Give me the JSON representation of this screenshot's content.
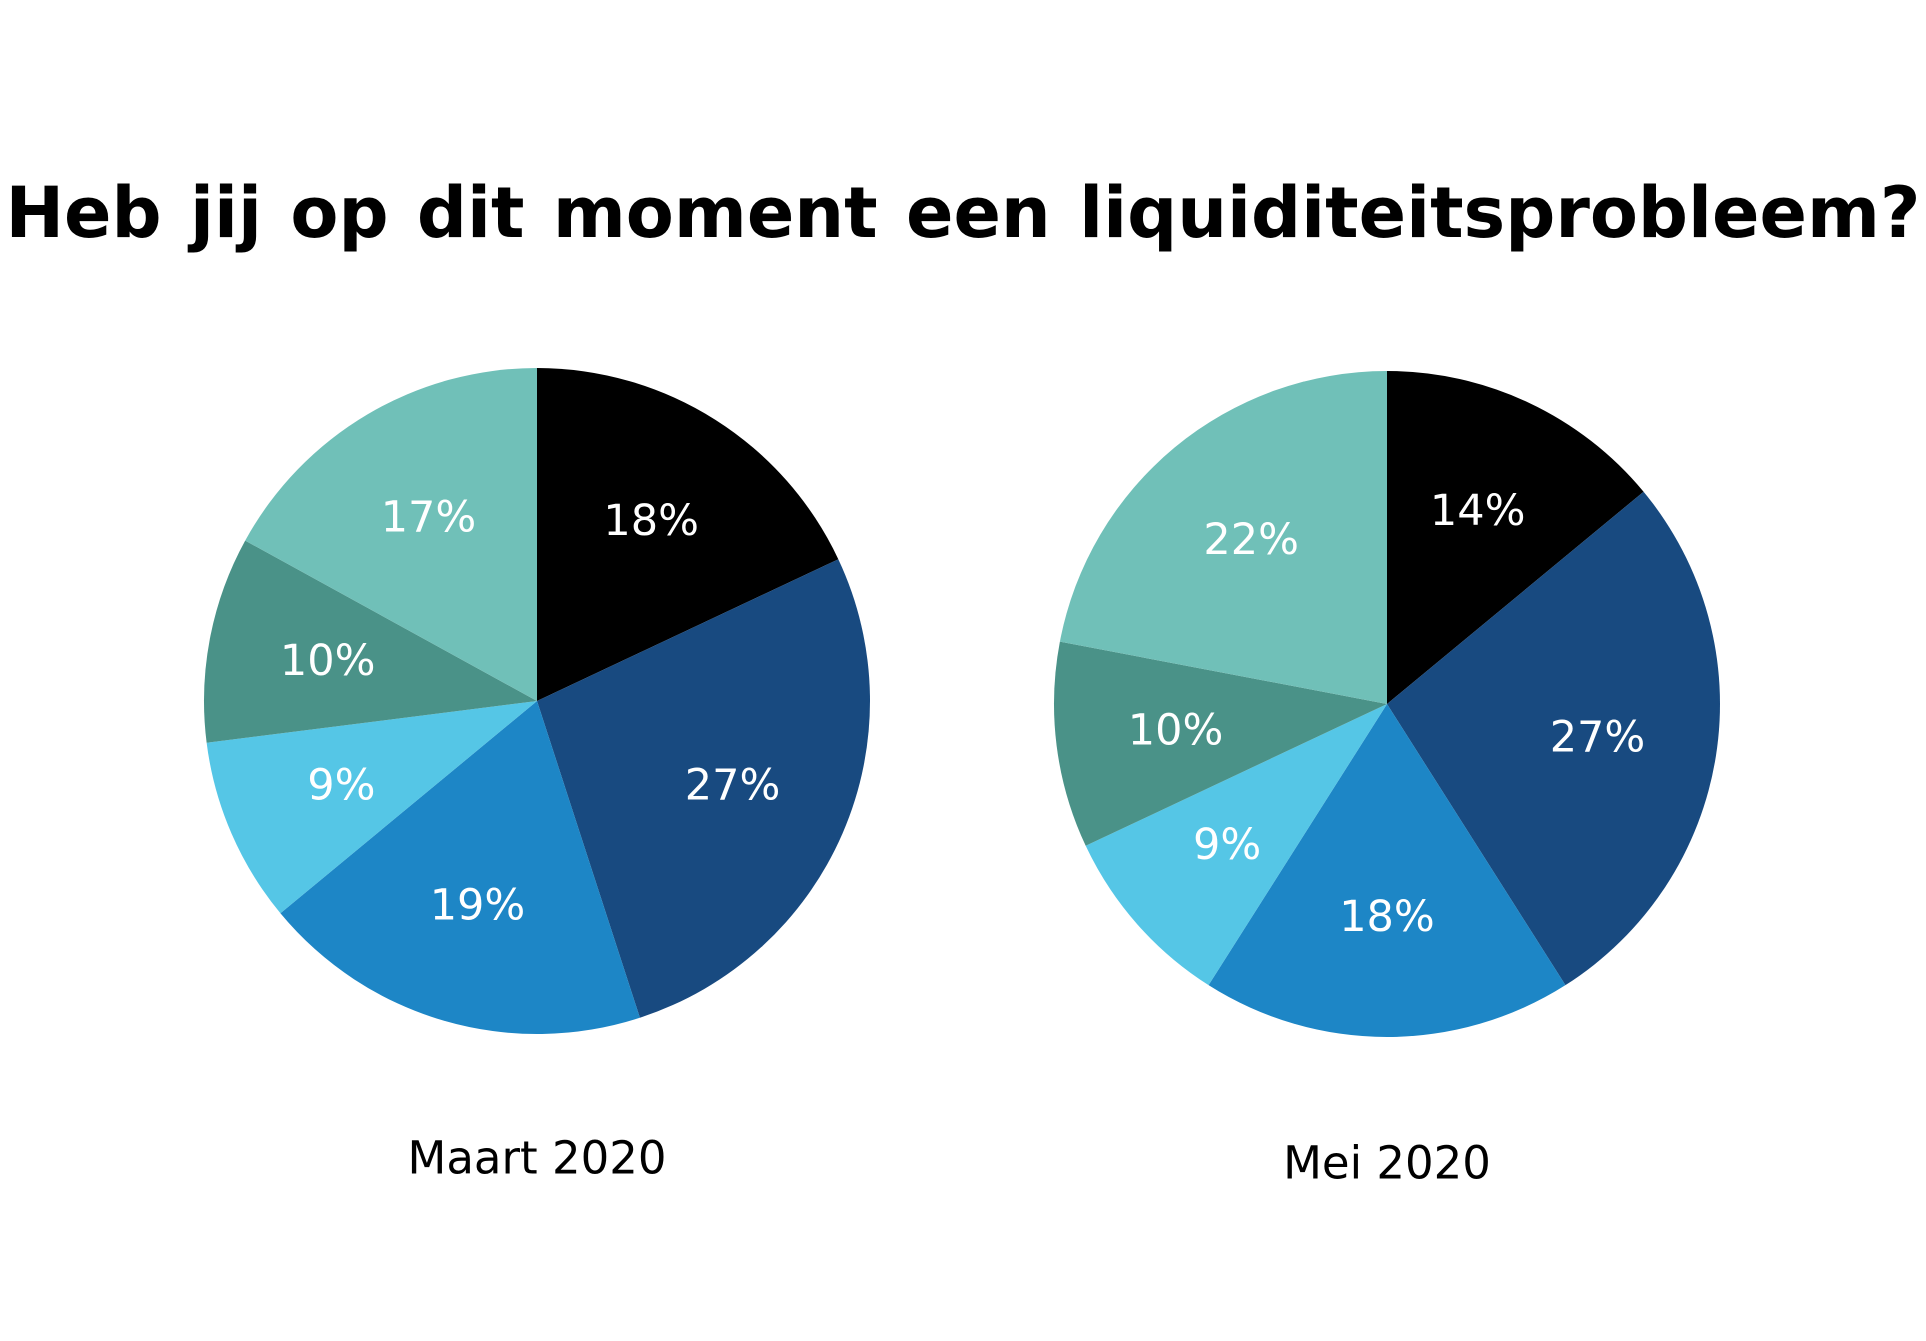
{
  "title": "Heb jij op dit moment  een liquiditeitsprobleem?",
  "colors": [
    "#000000",
    "#184a80",
    "#1d86c6",
    "#55c6e6",
    "#4a9288",
    "#70c0b8"
  ],
  "chart_data": [
    {
      "type": "pie",
      "caption": "Maart 2020",
      "values": [
        18,
        27,
        19,
        9,
        10,
        17
      ],
      "labels": [
        "18%",
        "27%",
        "19%",
        "9%",
        "10%",
        "17%"
      ]
    },
    {
      "type": "pie",
      "caption": "Mei 2020",
      "values": [
        14,
        27,
        18,
        9,
        10,
        22
      ],
      "labels": [
        "14%",
        "27%",
        "18%",
        "9%",
        "10%",
        "22%"
      ]
    }
  ]
}
